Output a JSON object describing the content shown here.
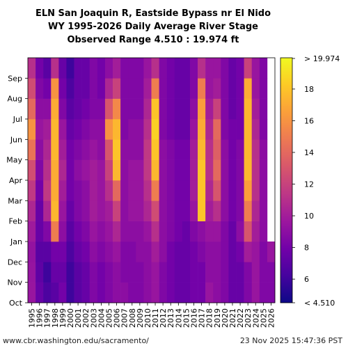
{
  "chart_data": {
    "type": "heatmap",
    "title": [
      "ELN San Joaquin R, Eastside Bypass nr El Nido",
      "WY 1995-2026 Daily Average River Stage",
      "Observed Range 4.510 : 19.974 ft"
    ],
    "years": [
      "1995",
      "1996",
      "1997",
      "1998",
      "1999",
      "2000",
      "2001",
      "2002",
      "2003",
      "2004",
      "2005",
      "2006",
      "2007",
      "2008",
      "2009",
      "2010",
      "2011",
      "2012",
      "2013",
      "2014",
      "2015",
      "2016",
      "2017",
      "2018",
      "2019",
      "2020",
      "2021",
      "2022",
      "2023",
      "2024",
      "2025",
      "2026"
    ],
    "months": [
      "Oct",
      "Nov",
      "Dec",
      "Jan",
      "Feb",
      "Mar",
      "Apr",
      "May",
      "Jun",
      "Jul",
      "Aug",
      "Sep"
    ],
    "monthly_stage_ft": [
      [
        9.5,
        9.4,
        9.3,
        9.8,
        10.5,
        11.5,
        12.6,
        14.5,
        16.0,
        14.0,
        12.5,
        11.0
      ],
      [
        7.5,
        7.2,
        7.0,
        7.5,
        7.5,
        8.0,
        8.5,
        9.0,
        9.5,
        9.0,
        8.5,
        8.0
      ],
      [
        6.5,
        6.0,
        7.0,
        8.5,
        10.5,
        11.5,
        11.0,
        10.5,
        10.0,
        9.0,
        8.0,
        7.0
      ],
      [
        7.0,
        7.5,
        8.0,
        15.0,
        17.5,
        17.0,
        17.0,
        17.5,
        17.5,
        17.0,
        16.0,
        11.0
      ],
      [
        8.0,
        7.5,
        8.0,
        9.0,
        9.5,
        10.0,
        10.5,
        10.0,
        9.5,
        8.5,
        8.0,
        7.5
      ],
      [
        6.0,
        6.0,
        6.5,
        7.0,
        7.5,
        8.0,
        8.0,
        8.0,
        7.5,
        7.0,
        6.5,
        6.0
      ],
      [
        7.0,
        7.0,
        7.5,
        8.0,
        8.5,
        8.5,
        9.0,
        8.5,
        8.0,
        7.5,
        7.5,
        7.5
      ],
      [
        7.5,
        7.5,
        8.0,
        8.5,
        9.0,
        9.0,
        9.5,
        9.0,
        8.5,
        8.0,
        7.5,
        7.5
      ],
      [
        8.5,
        8.5,
        9.0,
        9.5,
        10.0,
        10.0,
        10.0,
        9.5,
        9.0,
        8.5,
        8.5,
        8.5
      ],
      [
        8.0,
        8.0,
        8.5,
        9.0,
        9.5,
        9.5,
        9.5,
        9.0,
        9.0,
        8.5,
        8.0,
        8.0
      ],
      [
        8.5,
        8.5,
        9.0,
        9.5,
        10.0,
        11.0,
        12.0,
        13.0,
        16.0,
        13.0,
        10.5,
        9.0
      ],
      [
        9.0,
        9.0,
        9.5,
        10.5,
        12.0,
        14.0,
        17.5,
        18.0,
        17.5,
        15.5,
        12.0,
        10.0
      ],
      [
        9.0,
        8.5,
        8.5,
        9.0,
        9.0,
        9.0,
        9.0,
        9.0,
        8.5,
        8.5,
        8.5,
        8.5
      ],
      [
        8.5,
        8.5,
        8.5,
        9.0,
        9.5,
        9.5,
        9.5,
        9.0,
        9.0,
        8.5,
        8.5,
        8.5
      ],
      [
        8.5,
        8.5,
        9.0,
        9.0,
        9.5,
        9.5,
        9.5,
        9.0,
        9.0,
        8.5,
        8.5,
        8.5
      ],
      [
        9.0,
        9.0,
        9.0,
        9.5,
        10.5,
        11.0,
        11.5,
        11.5,
        11.0,
        10.5,
        10.0,
        9.5
      ],
      [
        9.5,
        9.5,
        10.0,
        11.0,
        12.5,
        15.0,
        17.5,
        18.0,
        18.5,
        18.0,
        15.0,
        11.0
      ],
      [
        8.5,
        8.5,
        9.0,
        9.0,
        9.0,
        9.0,
        9.0,
        9.0,
        8.5,
        8.5,
        8.5,
        8.5
      ],
      [
        8.0,
        8.0,
        8.0,
        8.5,
        8.5,
        8.5,
        8.5,
        8.5,
        8.0,
        8.0,
        8.0,
        8.0
      ],
      [
        7.5,
        7.5,
        7.5,
        8.0,
        8.0,
        8.0,
        8.0,
        8.0,
        7.5,
        7.5,
        7.5,
        7.5
      ],
      [
        7.5,
        7.5,
        7.5,
        7.5,
        8.0,
        8.0,
        8.0,
        8.0,
        7.5,
        7.5,
        7.5,
        7.5
      ],
      [
        8.0,
        8.0,
        8.0,
        8.5,
        9.5,
        10.0,
        10.0,
        10.0,
        9.5,
        9.0,
        8.5,
        8.5
      ],
      [
        8.0,
        8.0,
        8.5,
        9.0,
        18.0,
        18.0,
        18.0,
        17.5,
        17.0,
        16.5,
        15.0,
        11.0
      ],
      [
        9.5,
        9.0,
        9.0,
        9.5,
        10.0,
        10.5,
        11.0,
        11.0,
        10.5,
        10.0,
        9.5,
        9.5
      ],
      [
        9.0,
        9.0,
        9.0,
        9.5,
        11.0,
        13.0,
        14.0,
        13.5,
        14.0,
        12.0,
        10.0,
        9.5
      ],
      [
        8.5,
        8.5,
        8.5,
        8.5,
        9.0,
        9.0,
        9.0,
        9.0,
        8.5,
        8.5,
        8.5,
        8.5
      ],
      [
        7.5,
        7.5,
        7.5,
        7.5,
        8.0,
        8.0,
        8.0,
        8.0,
        8.0,
        7.5,
        7.5,
        7.5
      ],
      [
        7.5,
        7.5,
        8.0,
        9.0,
        8.5,
        8.5,
        8.5,
        8.5,
        8.0,
        8.0,
        8.0,
        8.0
      ],
      [
        8.5,
        8.5,
        10.0,
        13.0,
        15.0,
        16.5,
        17.5,
        17.5,
        17.5,
        17.5,
        17.0,
        12.0
      ],
      [
        9.5,
        9.5,
        9.5,
        10.0,
        10.5,
        11.0,
        11.0,
        11.0,
        10.5,
        10.0,
        9.5,
        9.5
      ],
      [
        8.5,
        8.5,
        8.5,
        9.0,
        9.0,
        9.0,
        9.0,
        9.0,
        8.5,
        8.5,
        8.5,
        8.5
      ],
      [
        8.5,
        8.5,
        9.5,
        null,
        null,
        null,
        null,
        null,
        null,
        null,
        null,
        null
      ]
    ],
    "colorbar": {
      "min_label": "< 4.510",
      "max_label": "> 19.974",
      "range": [
        4.51,
        19.974
      ],
      "ticks": [
        6,
        8,
        10,
        12,
        14,
        16,
        18
      ],
      "colormap": "plasma"
    }
  },
  "footer": {
    "source": "www.cbr.washington.edu/sacramento/",
    "timestamp": "23 Nov 2025 15:47:36 PST"
  }
}
